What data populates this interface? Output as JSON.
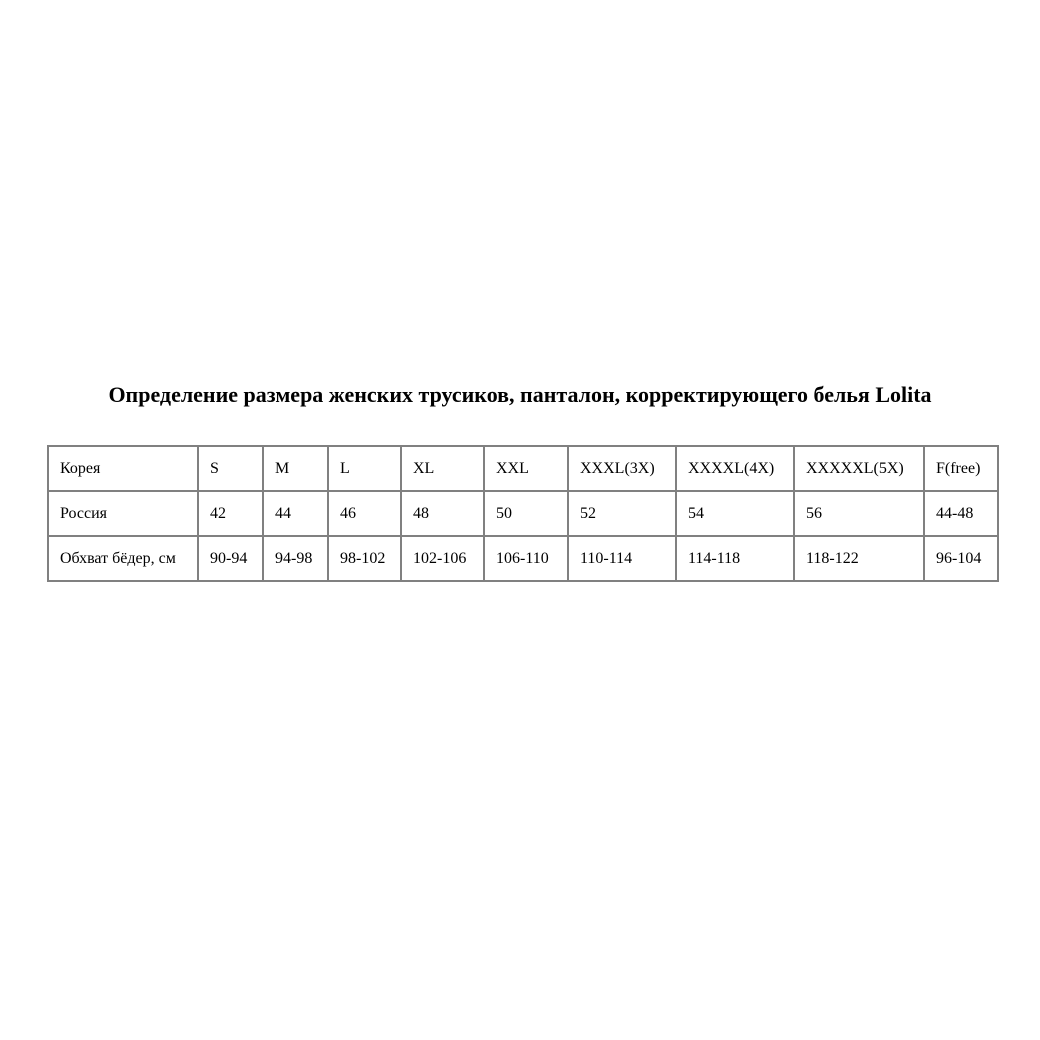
{
  "title": "Определение размера женских трусиков, панталон, корректирующего белья Lolita",
  "size_table": {
    "border_color": "#808080",
    "rows": [
      [
        "Корея",
        "S",
        "M",
        "L",
        "XL",
        "XXL",
        "XXXL(3X)",
        "XXXXL(4X)",
        "XXXXXL(5X)",
        "F(free)"
      ],
      [
        "Россия",
        "42",
        "44",
        "46",
        "48",
        "50",
        "52",
        "54",
        "56",
        "44-48"
      ],
      [
        "Обхват бёдер, см",
        "90-94",
        "94-98",
        "98-102",
        "102-106",
        "106-110",
        "110-114",
        "114-118",
        "118-122",
        "96-104"
      ]
    ]
  },
  "chart_data": {
    "type": "table",
    "title": "Определение размера женских трусиков, панталон, корректирующего белья Lolita",
    "row_labels": [
      "Корея",
      "Россия",
      "Обхват бёдер, см"
    ],
    "columns": [
      {
        "korea": "S",
        "russia": "42",
        "hips_cm": "90-94"
      },
      {
        "korea": "M",
        "russia": "44",
        "hips_cm": "94-98"
      },
      {
        "korea": "L",
        "russia": "46",
        "hips_cm": "98-102"
      },
      {
        "korea": "XL",
        "russia": "48",
        "hips_cm": "102-106"
      },
      {
        "korea": "XXL",
        "russia": "50",
        "hips_cm": "106-110"
      },
      {
        "korea": "XXXL(3X)",
        "russia": "52",
        "hips_cm": "110-114"
      },
      {
        "korea": "XXXXL(4X)",
        "russia": "54",
        "hips_cm": "114-118"
      },
      {
        "korea": "XXXXXL(5X)",
        "russia": "56",
        "hips_cm": "118-122"
      },
      {
        "korea": "F(free)",
        "russia": "44-48",
        "hips_cm": "96-104"
      }
    ]
  }
}
